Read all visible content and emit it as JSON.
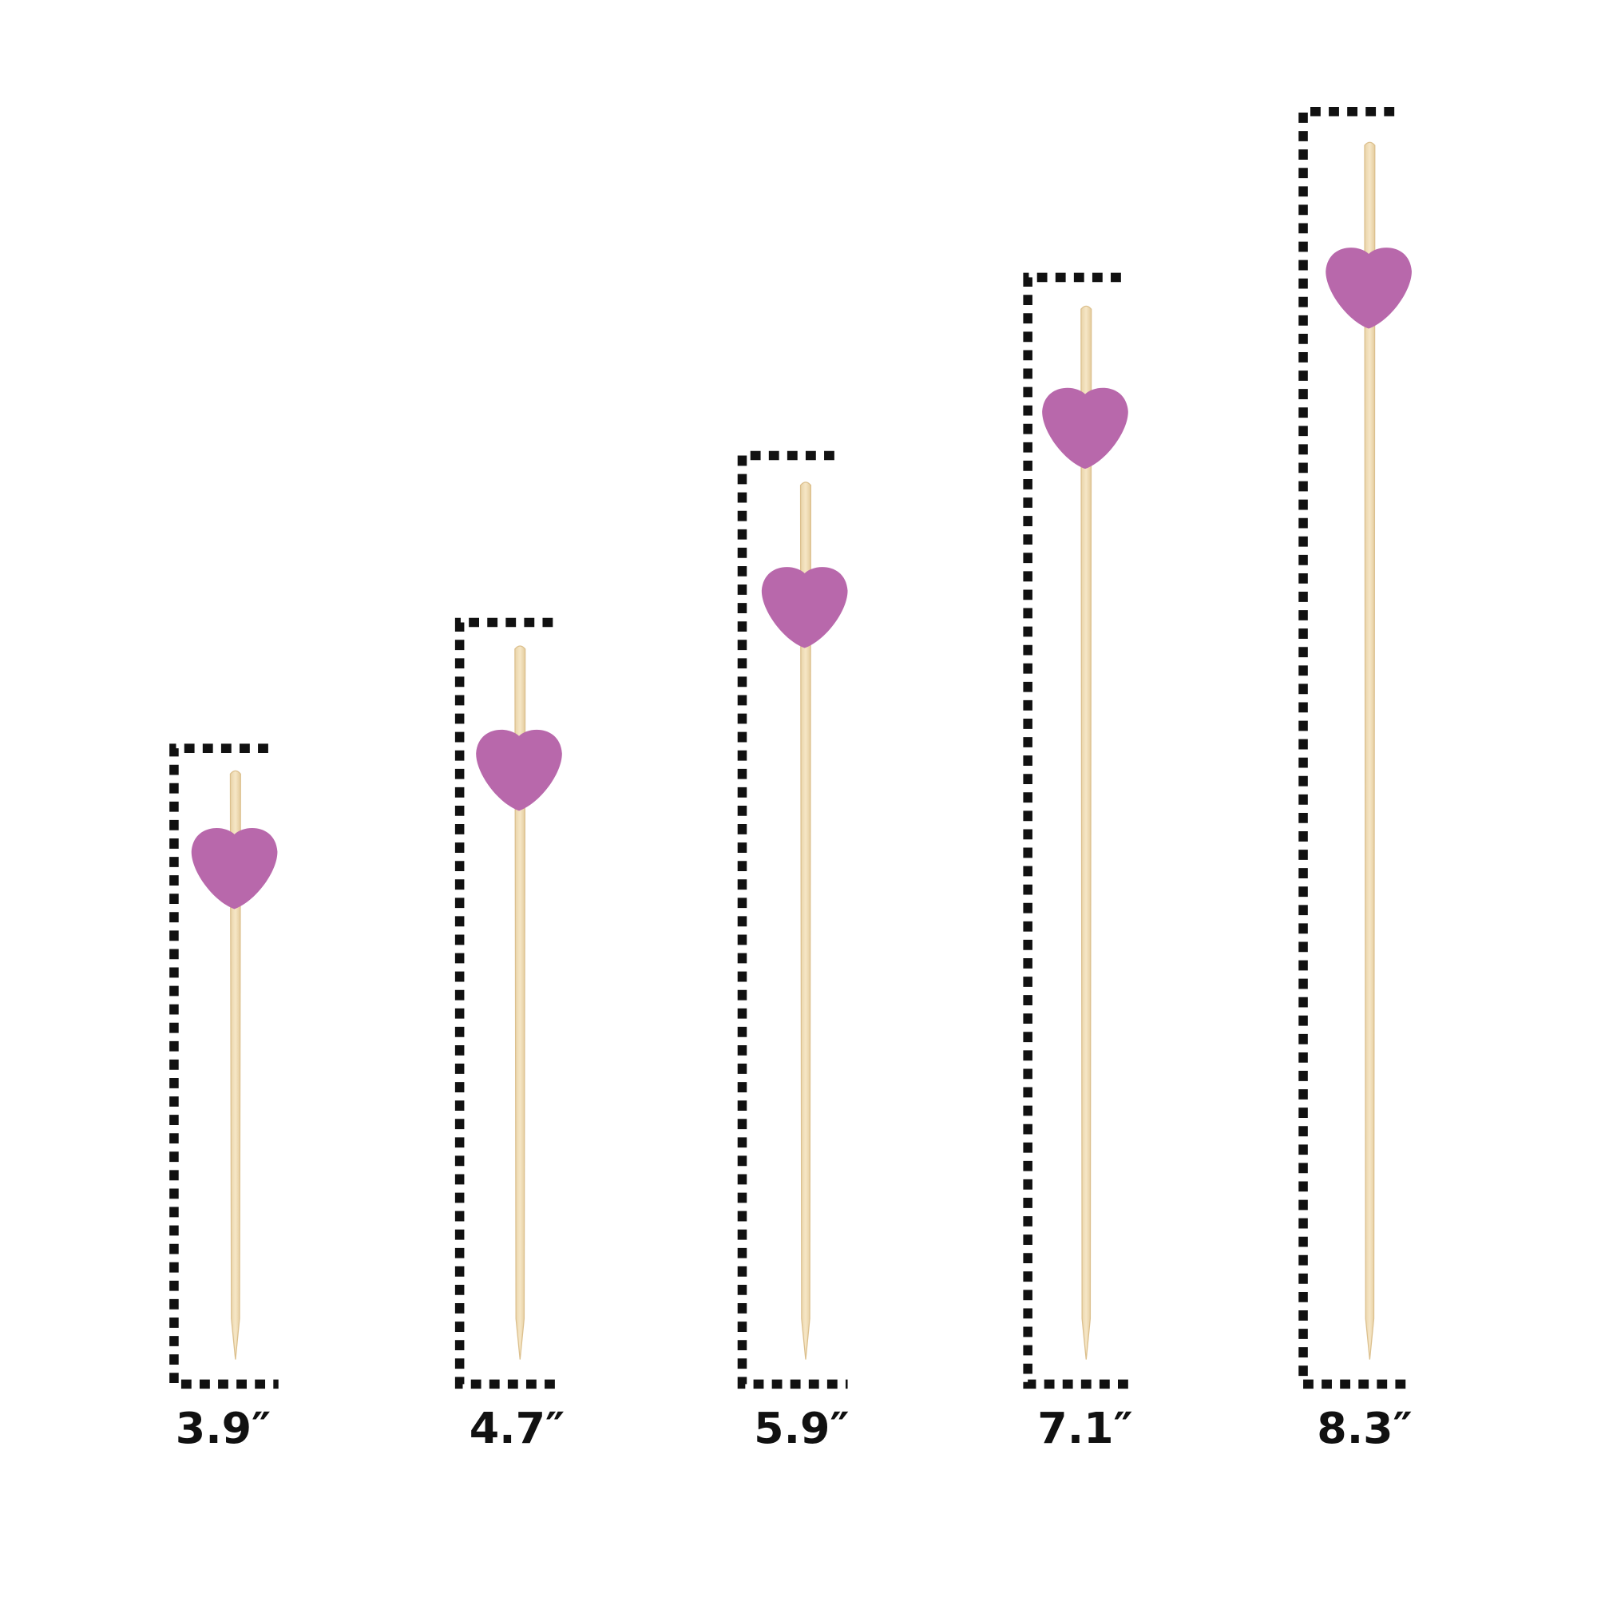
{
  "items": [
    {
      "label": "3.9″"
    },
    {
      "label": "4.7″"
    },
    {
      "label": "5.9″"
    },
    {
      "label": "7.1″"
    },
    {
      "label": "8.3″"
    }
  ]
}
